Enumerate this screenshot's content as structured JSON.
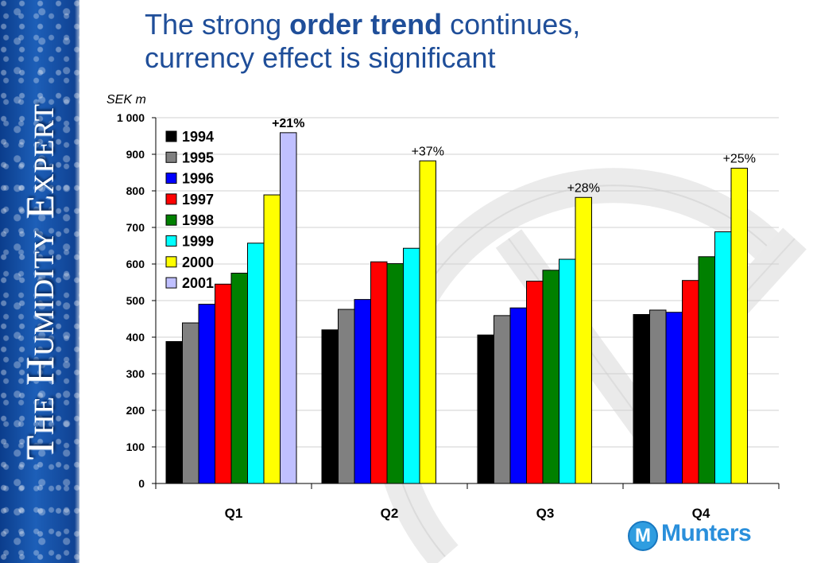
{
  "sidebar": {
    "brand_text": "The Humidity Expert"
  },
  "title": {
    "part1": "The strong ",
    "part_bold": "order trend",
    "part2": " continues,",
    "line2": "currency effect is significant"
  },
  "logo": {
    "mark": "M",
    "text": "Munters"
  },
  "colors": {
    "1994": "#000000",
    "1995": "#808080",
    "1996": "#0000ff",
    "1997": "#ff0000",
    "1998": "#008000",
    "1999": "#00ffff",
    "2000": "#ffff00",
    "2001": "#c0c0ff",
    "title": "#1f4e99"
  },
  "chart_data": {
    "type": "bar",
    "ylabel": "SEK m",
    "ylim": [
      0,
      1000
    ],
    "yticks": [
      "0",
      "100",
      "200",
      "300",
      "400",
      "500",
      "600",
      "700",
      "800",
      "900",
      "1 000"
    ],
    "grid": true,
    "legend_position": "top-left",
    "categories": [
      "Q1",
      "Q2",
      "Q3",
      "Q4"
    ],
    "series": [
      {
        "name": "1994",
        "values": [
          388,
          420,
          406,
          462
        ]
      },
      {
        "name": "1995",
        "values": [
          439,
          476,
          459,
          474
        ]
      },
      {
        "name": "1996",
        "values": [
          490,
          503,
          480,
          468
        ]
      },
      {
        "name": "1997",
        "values": [
          545,
          606,
          553,
          555
        ]
      },
      {
        "name": "1998",
        "values": [
          575,
          601,
          583,
          620
        ]
      },
      {
        "name": "1999",
        "values": [
          657,
          643,
          613,
          688
        ]
      },
      {
        "name": "2000",
        "values": [
          789,
          882,
          782,
          862
        ]
      },
      {
        "name": "2001",
        "values": [
          959,
          null,
          null,
          null
        ]
      }
    ],
    "annotations": [
      {
        "text": "+21%",
        "category": "Q1",
        "bold": true
      },
      {
        "text": "+37%",
        "category": "Q2",
        "bold": false
      },
      {
        "text": "+28%",
        "category": "Q3",
        "bold": false
      },
      {
        "text": "+25%",
        "category": "Q4",
        "bold": false
      }
    ]
  }
}
